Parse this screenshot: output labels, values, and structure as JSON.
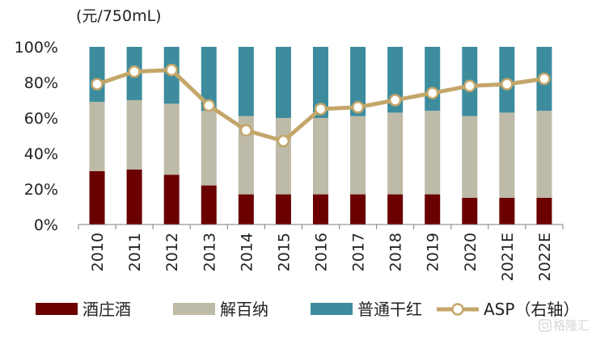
{
  "chart_data": {
    "type": "bar",
    "stacked": true,
    "title": "",
    "unit_label": "(元/750mL)",
    "xlabel": "",
    "ylabel": "",
    "ylim": [
      0,
      100
    ],
    "y_ticks": [
      "100%",
      "80%",
      "60%",
      "40%",
      "20%",
      "0%"
    ],
    "y_tick_values": [
      100,
      80,
      60,
      40,
      20,
      0
    ],
    "categories": [
      "2010",
      "2011",
      "2012",
      "2013",
      "2014",
      "2015",
      "2016",
      "2017",
      "2018",
      "2019",
      "2020",
      "2021E",
      "2022E"
    ],
    "series": [
      {
        "name": "酒庄酒",
        "kind": "bar",
        "color": "#6b0000",
        "values": [
          30,
          31,
          28,
          22,
          17,
          17,
          17,
          17,
          17,
          17,
          15,
          15,
          15
        ]
      },
      {
        "name": "解百纳",
        "kind": "bar",
        "color": "#bdbaa8",
        "values": [
          39,
          39,
          40,
          42,
          44,
          43,
          43,
          44,
          46,
          47,
          46,
          48,
          49
        ]
      },
      {
        "name": "普通干红",
        "kind": "bar",
        "color": "#3c8c9e",
        "values": [
          31,
          30,
          32,
          36,
          39,
          40,
          40,
          39,
          37,
          36,
          39,
          37,
          36
        ]
      },
      {
        "name": "ASP（右轴）",
        "kind": "line",
        "color": "#c4a66a",
        "values": [
          79,
          86,
          87,
          67,
          53,
          47,
          65,
          66,
          70,
          74,
          78,
          79,
          82
        ]
      }
    ],
    "grid": false,
    "legend_position": "bottom",
    "watermark": "格隆汇"
  }
}
